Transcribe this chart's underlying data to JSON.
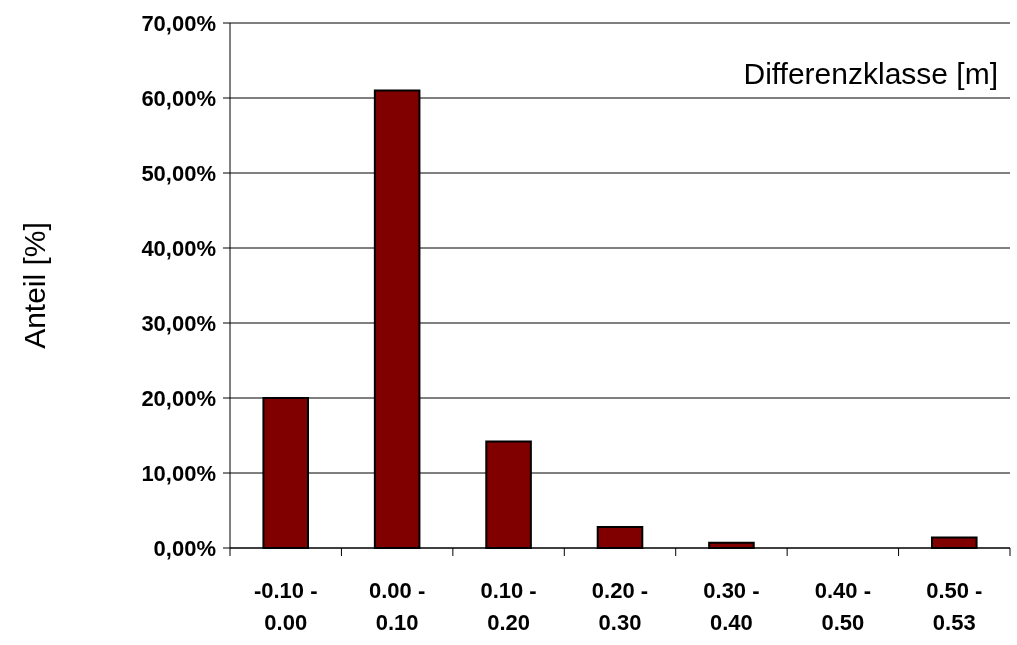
{
  "chart_data": {
    "type": "bar",
    "xlabel": "Differenzklasse [m]",
    "ylabel": "Anteil [%]",
    "categories": [
      "-0.10 - 0.00",
      "0.00 - 0.10",
      "0.10 - 0.20",
      "0.20 - 0.30",
      "0.30 - 0.40",
      "0.40 - 0.50",
      "0.50 - 0.53"
    ],
    "values": [
      20.0,
      61.0,
      14.2,
      2.8,
      0.7,
      0,
      1.4
    ],
    "color": "#800000",
    "ylim": [
      0,
      70
    ],
    "yticks": [
      {
        "value": 0,
        "label": "0,00%"
      },
      {
        "value": 10,
        "label": "10,00%"
      },
      {
        "value": 20,
        "label": "20,00%"
      },
      {
        "value": 30,
        "label": "30,00%"
      },
      {
        "value": 40,
        "label": "40,00%"
      },
      {
        "value": 50,
        "label": "50,00%"
      },
      {
        "value": 60,
        "label": "60,00%"
      },
      {
        "value": 70,
        "label": "70,00%"
      }
    ],
    "grid": "y"
  }
}
